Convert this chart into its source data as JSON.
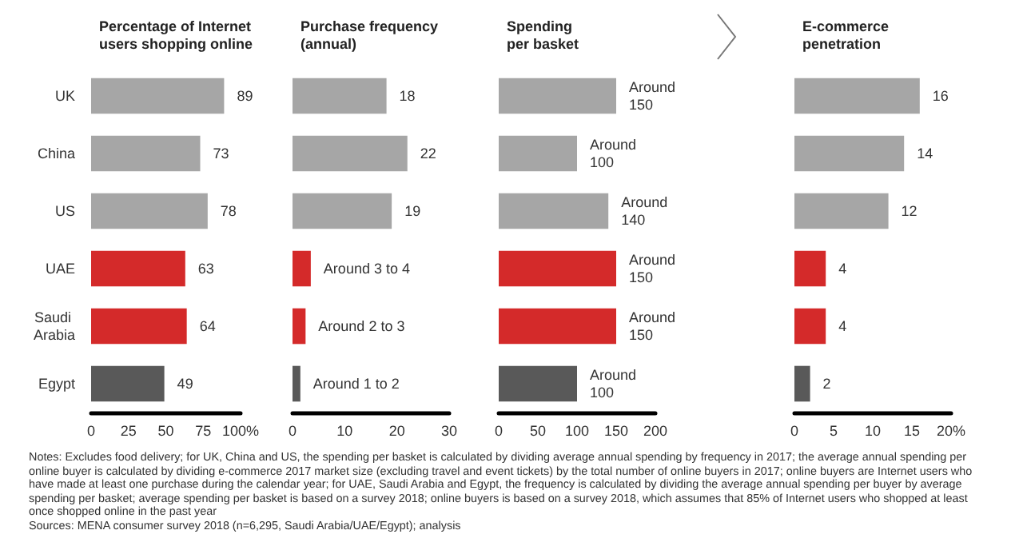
{
  "chart_data": [
    {
      "type": "bar",
      "orientation": "horizontal",
      "title": "Percentage of Internet users shopping online",
      "categories": [
        "UK",
        "China",
        "US",
        "UAE",
        "Saudi Arabia",
        "Egypt"
      ],
      "values": [
        89,
        73,
        78,
        63,
        64,
        49
      ],
      "colors": [
        "#a6a6a6",
        "#a6a6a6",
        "#a6a6a6",
        "#d42a2a",
        "#d42a2a",
        "#595959"
      ],
      "xlim": [
        0,
        100
      ],
      "xticks": [
        0,
        25,
        50,
        75,
        {
          "value": 100,
          "label": "100%"
        }
      ],
      "data_labels": true,
      "annotations": [
        "Notes: Excludes food delivery; for UK, China and US, the spending per basket is calculated by dividing average annual spending by frequency in 2017; the average annual spending per online buyer is calculated by dividing e-commerce 2017 market size (excluding travel and event tickets) by the total number of online buyers in 2017; online buyers are Internet users who have made at least one purchase during the calendar year; for UAE, Saudi Arabia and Egypt, the frequency is calculated by dividing the average annual spending per buyer by average spending per basket; average spending per basket is based on a survey 2018; online buyers is based on a survey 2018, which assumes that 85% of Internet users who shopped at least once shopped online in the past year",
        "Sources: MENA consumer survey 2018 (n=6,295, Saudi Arabia/UAE/Egypt); analysis"
      ]
    },
    {
      "type": "bar",
      "orientation": "horizontal",
      "title": "Purchase frequency (annual)",
      "categories": [
        "UK",
        "China",
        "US",
        "UAE",
        "Saudi Arabia",
        "Egypt"
      ],
      "values": [
        18,
        22,
        19,
        3.5,
        2.5,
        1.5
      ],
      "colors": [
        "#a6a6a6",
        "#a6a6a6",
        "#a6a6a6",
        "#d42a2a",
        "#d42a2a",
        "#595959"
      ],
      "value_labels": [
        "18",
        "22",
        "19",
        "Around 3 to 4",
        "Around 2 to 3",
        "Around 1 to 2"
      ],
      "xlim": [
        0,
        30
      ],
      "xticks": [
        0,
        10,
        20,
        30
      ],
      "tick_labels": "x"
    },
    {
      "type": "bar",
      "orientation": "horizontal",
      "title": "Spending per basket",
      "categories": [
        "UK",
        "China",
        "US",
        "UAE",
        "Saudi Arabia",
        "Egypt"
      ],
      "values": [
        150,
        100,
        140,
        150,
        150,
        100
      ],
      "colors": [
        "#a6a6a6",
        "#a6a6a6",
        "#a6a6a6",
        "#d42a2a",
        "#d42a2a",
        "#595959"
      ],
      "value_labels": [
        "Around 150",
        "Around 100",
        "Around 140",
        "Around 150",
        "Around 150",
        "Around 100"
      ],
      "xlim": [
        0,
        200
      ],
      "xticks": [
        0,
        50,
        100,
        150,
        200
      ],
      "tick_labels": "x"
    },
    {
      "type": "bar",
      "orientation": "horizontal",
      "title": "E-commerce penetration",
      "categories": [
        "UK",
        "China",
        "US",
        "UAE",
        "Saudi Arabia",
        "Egypt"
      ],
      "values": [
        16,
        14,
        12,
        4,
        4,
        2
      ],
      "colors": [
        "#a6a6a6",
        "#a6a6a6",
        "#a6a6a6",
        "#d42a2a",
        "#d42a2a",
        "#595959"
      ],
      "xlim": [
        0,
        20
      ],
      "xticks": [
        0,
        5,
        10,
        15,
        {
          "value": 20,
          "label": "20%"
        }
      ],
      "data_labels": true,
      "tick_labels": "x"
    }
  ]
}
